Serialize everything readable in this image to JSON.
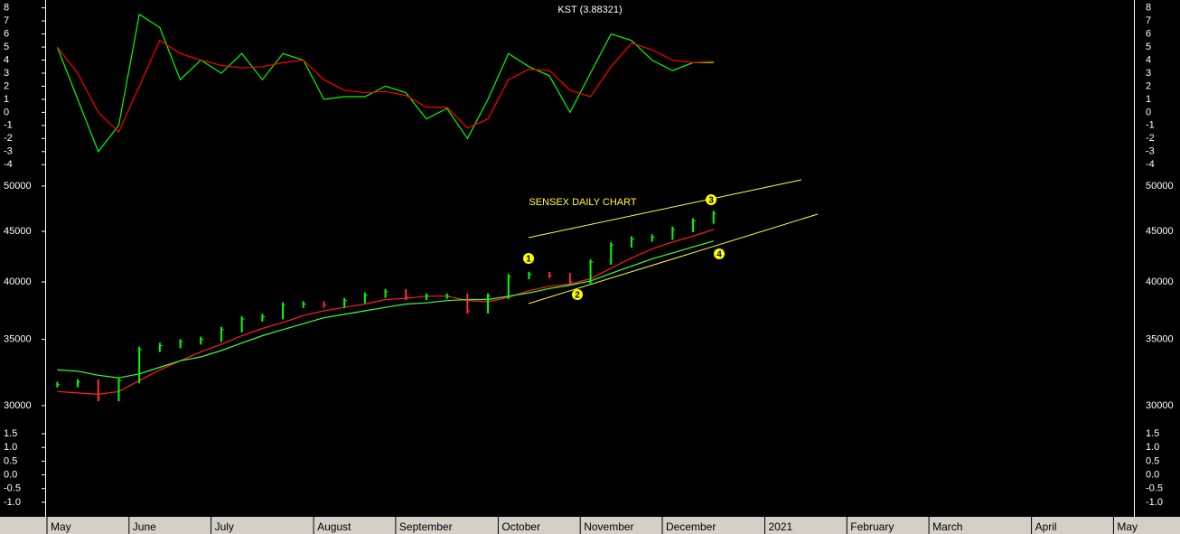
{
  "chart_data": [
    {
      "type": "line",
      "title": "KST (3.88321)",
      "ylim": [
        -4.4,
        8.6
      ],
      "yticks": [
        -4,
        -3,
        -2,
        -1,
        0,
        1,
        2,
        3,
        4,
        5,
        6,
        7,
        8
      ],
      "series": [
        {
          "color": "#00ff00",
          "values": [
            5,
            1,
            -3,
            -1,
            7.5,
            6.5,
            2.5,
            4,
            3,
            4.5,
            2.5,
            4.5,
            4,
            1,
            1.2,
            1.2,
            2,
            1.5,
            -0.5,
            0.3,
            -2,
            1,
            4.5,
            3.5,
            2.8,
            0,
            3,
            6,
            5.5,
            4,
            3.2,
            3.8,
            3.8,
            null,
            null,
            null,
            null,
            null,
            null,
            null,
            null,
            null,
            null,
            null,
            null,
            null,
            null,
            null,
            null,
            null,
            null,
            null,
            null
          ]
        },
        {
          "color": "#ff0000",
          "values": [
            5,
            3,
            0,
            -1.5,
            2,
            5.5,
            4.5,
            4,
            3.6,
            3.4,
            3.5,
            3.8,
            4,
            2.5,
            1.7,
            1.5,
            1.6,
            1.3,
            0.4,
            0.4,
            -1.2,
            -0.5,
            2.5,
            3.3,
            3.2,
            1.7,
            1.2,
            3.5,
            5.3,
            4.8,
            4,
            3.8,
            3.9,
            null,
            null,
            null,
            null,
            null,
            null,
            null,
            null,
            null,
            null,
            null,
            null,
            null,
            null,
            null,
            null,
            null,
            null,
            null,
            null
          ]
        }
      ]
    },
    {
      "type": "price",
      "title": "SENSEX DAILY CHART",
      "log_scale": true,
      "ylim": [
        28700,
        51700
      ],
      "yticks": [
        30000,
        35000,
        40000,
        45000,
        50000
      ],
      "up_color": "#00ff00",
      "down_color": "#ff3030",
      "annotations": [
        "1",
        "2",
        "3",
        "4"
      ],
      "trendline_color": "#ffff40",
      "values": [
        31500,
        31700,
        30500,
        31800,
        34200,
        34500,
        34800,
        35000,
        35800,
        36700,
        36900,
        37900,
        38000,
        37900,
        38300,
        38800,
        39100,
        38600,
        38700,
        38700,
        37400,
        38700,
        40500,
        40700,
        40600,
        40000,
        41900,
        43600,
        44200,
        44400,
        45200,
        46100,
        46900,
        null,
        null,
        null,
        null,
        null,
        null,
        null,
        null,
        null,
        null,
        null,
        null,
        null,
        null,
        null,
        null,
        null,
        null,
        null,
        null
      ],
      "series": [
        {
          "color": "#ff2020",
          "values": [
            31000,
            30900,
            30800,
            31000,
            31800,
            32600,
            33300,
            34000,
            34600,
            35300,
            35900,
            36400,
            37000,
            37400,
            37700,
            38000,
            38400,
            38500,
            38700,
            38700,
            38300,
            38200,
            38600,
            39200,
            39600,
            39800,
            40300,
            41300,
            42300,
            43200,
            43900,
            44500,
            45200,
            null,
            null,
            null,
            null,
            null,
            null,
            null,
            null,
            null,
            null,
            null,
            null,
            null,
            null,
            null,
            null,
            null,
            null,
            null,
            null
          ]
        },
        {
          "color": "#40ff40",
          "values": [
            32600,
            32500,
            32200,
            32000,
            32300,
            32800,
            33300,
            33600,
            34100,
            34700,
            35300,
            35800,
            36300,
            36800,
            37100,
            37400,
            37700,
            38000,
            38100,
            38300,
            38400,
            38400,
            38700,
            39000,
            39400,
            39700,
            40100,
            40800,
            41500,
            42200,
            42800,
            43400,
            44000,
            null,
            null,
            null,
            null,
            null,
            null,
            null,
            null,
            null,
            null,
            null,
            null,
            null,
            null,
            null,
            null,
            null,
            null,
            null,
            null
          ]
        }
      ]
    },
    {
      "type": "axis",
      "ylim": [
        -1.53,
        1.83
      ],
      "yticks": [
        {
          "value": -1,
          "label": "-1.0"
        },
        {
          "value": -0.5,
          "label": "-0.5"
        },
        {
          "value": 0,
          "label": "0.0"
        },
        {
          "value": 0.5,
          "label": "0.5"
        },
        {
          "value": 1,
          "label": "1.0"
        },
        1.5
      ],
      "categories": [
        "May",
        null,
        null,
        null,
        "June",
        null,
        null,
        null,
        "July",
        null,
        null,
        null,
        null,
        "August",
        null,
        null,
        null,
        "September",
        null,
        null,
        null,
        null,
        "October",
        null,
        null,
        null,
        "November",
        null,
        null,
        null,
        "December",
        null,
        null,
        null,
        null,
        "2021",
        null,
        null,
        null,
        "February",
        null,
        null,
        null,
        "March",
        null,
        null,
        null,
        null,
        "April",
        null,
        null,
        null,
        "May"
      ]
    }
  ]
}
